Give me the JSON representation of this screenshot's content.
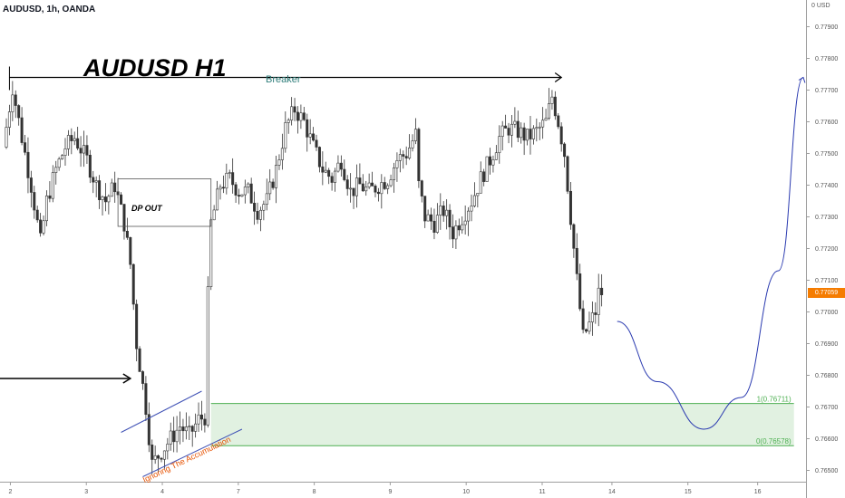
{
  "header": {
    "symbol_line": "AUDUSD, 1h, OANDA"
  },
  "annotations": {
    "title": "AUDUSD H1",
    "breaker": "Breaker",
    "dp_out": "DP OUT",
    "accumulation": "Ignoring The Accumulation",
    "zone_top_label": "1(0.76711)",
    "zone_bottom_label": "0(0.76578)"
  },
  "price_axis": {
    "currency_label": "0 USD",
    "current_price_label": "0.77059",
    "current_price_color": "#f57c00"
  },
  "colors": {
    "up_candle": "#26a69a",
    "down_candle": "#ef5350",
    "candle_body": "#4a4a4a",
    "zone_fill": "#c8e6c9",
    "zone_line": "#4caf50",
    "projection": "#2a3ab0",
    "channel": "#3f51b5"
  },
  "chart_data": {
    "type": "candlestick",
    "symbol": "AUDUSD",
    "timeframe": "1h",
    "broker": "OANDA",
    "ylim": [
      0.7645,
      0.7795
    ],
    "y_ticks": [
      0.765,
      0.766,
      0.767,
      0.768,
      0.769,
      0.77,
      0.771,
      0.772,
      0.773,
      0.774,
      0.775,
      0.776,
      0.777,
      0.778,
      0.779
    ],
    "x_ticks": [
      "2",
      "3",
      "4",
      "7",
      "8",
      "9",
      "10",
      "11",
      "14",
      "15",
      "16"
    ],
    "current_price": 0.77059,
    "price_path": [
      [
        0,
        0.7752
      ],
      [
        3,
        0.7771
      ],
      [
        6,
        0.7755
      ],
      [
        9,
        0.774
      ],
      [
        11,
        0.7728
      ],
      [
        12,
        0.7722
      ],
      [
        14,
        0.7735
      ],
      [
        17,
        0.7745
      ],
      [
        20,
        0.7752
      ],
      [
        23,
        0.7755
      ],
      [
        27,
        0.7748
      ],
      [
        30,
        0.774
      ],
      [
        33,
        0.7735
      ],
      [
        36,
        0.774
      ],
      [
        39,
        0.7728
      ],
      [
        41,
        0.7715
      ],
      [
        43,
        0.769
      ],
      [
        46,
        0.767
      ],
      [
        48,
        0.7652
      ],
      [
        51,
        0.7656
      ],
      [
        54,
        0.766
      ],
      [
        57,
        0.7664
      ],
      [
        60,
        0.7661
      ],
      [
        63,
        0.7666
      ],
      [
        65,
        0.7667
      ],
      [
        66,
        0.7705
      ],
      [
        67,
        0.7728
      ],
      [
        70,
        0.774
      ],
      [
        73,
        0.7742
      ],
      [
        76,
        0.7738
      ],
      [
        79,
        0.7738
      ],
      [
        82,
        0.7732
      ],
      [
        85,
        0.7735
      ],
      [
        88,
        0.7745
      ],
      [
        91,
        0.7758
      ],
      [
        94,
        0.7764
      ],
      [
        97,
        0.776
      ],
      [
        100,
        0.7752
      ],
      [
        103,
        0.7745
      ],
      [
        106,
        0.7742
      ],
      [
        109,
        0.7748
      ],
      [
        112,
        0.7738
      ],
      [
        115,
        0.774
      ],
      [
        118,
        0.7738
      ],
      [
        121,
        0.774
      ],
      [
        124,
        0.7742
      ],
      [
        127,
        0.7748
      ],
      [
        130,
        0.775
      ],
      [
        133,
        0.7756
      ],
      [
        134,
        0.774
      ],
      [
        136,
        0.773
      ],
      [
        139,
        0.7728
      ],
      [
        142,
        0.7732
      ],
      [
        145,
        0.7725
      ],
      [
        148,
        0.773
      ],
      [
        151,
        0.7735
      ],
      [
        154,
        0.7742
      ],
      [
        157,
        0.7748
      ],
      [
        160,
        0.7755
      ],
      [
        163,
        0.7758
      ],
      [
        166,
        0.7757
      ],
      [
        169,
        0.7755
      ],
      [
        172,
        0.7757
      ],
      [
        175,
        0.776
      ],
      [
        177,
        0.7768
      ],
      [
        179,
        0.776
      ],
      [
        181,
        0.775
      ],
      [
        183,
        0.773
      ],
      [
        185,
        0.771
      ],
      [
        187,
        0.7692
      ],
      [
        189,
        0.7696
      ],
      [
        191,
        0.77
      ],
      [
        192,
        0.7706
      ]
    ],
    "zones": [
      {
        "from_label": "1(0.76711)",
        "top": 0.76711,
        "bottom": 0.76578,
        "bar_start": 66,
        "bar_end": 254
      }
    ],
    "breaker_line": {
      "price": 0.7774,
      "bar_start": 1,
      "bar_end": 179
    },
    "entry_arrow": {
      "price": 0.7679,
      "bar_start": 0,
      "bar_end": 40
    },
    "dp_box": {
      "top": 0.7742,
      "bottom": 0.7727,
      "bar_start": 36,
      "bar_end": 66
    },
    "channel": [
      {
        "from": [
          37,
          0.7662
        ],
        "to": [
          63,
          0.7675
        ]
      },
      {
        "from": [
          44,
          0.7648
        ],
        "to": [
          76,
          0.7663
        ]
      }
    ],
    "projection": [
      [
        197,
        0.7697
      ],
      [
        210,
        0.7678
      ],
      [
        225,
        0.7663
      ],
      [
        237,
        0.7673
      ],
      [
        249,
        0.7713
      ],
      [
        257,
        0.7774
      ]
    ]
  }
}
